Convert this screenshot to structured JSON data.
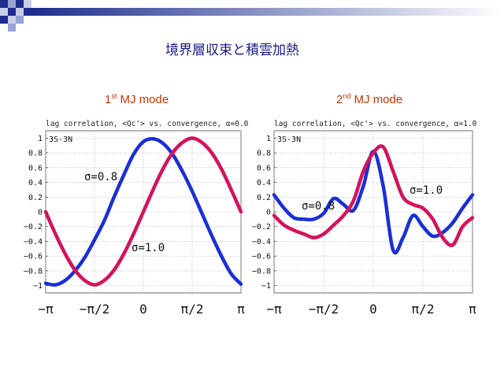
{
  "slide": {
    "title": "境界層収束と積雲加熱",
    "mode_labels": [
      {
        "prefix": "1",
        "sup": "st",
        "suffix": " MJ mode"
      },
      {
        "prefix": "2",
        "sup": "nd",
        "suffix": " MJ mode"
      }
    ]
  },
  "colors": {
    "blue_series": "#1a2fd6",
    "magenta_series": "#d4125c",
    "title_blue": "#1a1a8a",
    "mode_label": "#cc3300"
  },
  "chart_data": [
    {
      "type": "line",
      "title": "lag correlation, <Qc'> vs. convergence, α=0.0",
      "region_label": "3S-3N",
      "x_tick_labels": [
        "−π",
        "−π/2",
        "0",
        "π/2",
        "π"
      ],
      "x_ticks": [
        -3.1416,
        -1.5708,
        0,
        1.5708,
        3.1416
      ],
      "y_ticks": [
        -1,
        -0.8,
        -0.6,
        -0.4,
        -0.2,
        0,
        0.2,
        0.4,
        0.6,
        0.8,
        1
      ],
      "y_tick_labels": [
        "−1",
        "−0.8",
        "−0.6",
        "−0.4",
        "−0.2",
        "0",
        "0.2",
        "0.4",
        "0.6",
        "0.8",
        "1"
      ],
      "xlim": [
        -3.1416,
        3.1416
      ],
      "ylim": [
        -1.1,
        1.1
      ],
      "grid": true,
      "series": [
        {
          "label": "σ=0.8",
          "color": "#1a2fd6",
          "x": [
            -3.1416,
            -2.8274,
            -2.5133,
            -2.1991,
            -1.885,
            -1.5708,
            -1.2566,
            -0.9425,
            -0.6283,
            -0.3142,
            0,
            0.3142,
            0.6283,
            0.9425,
            1.2566,
            1.5708,
            1.885,
            2.1991,
            2.5133,
            2.8274,
            3.1416
          ],
          "y": [
            -0.97,
            -0.99,
            -0.93,
            -0.8,
            -0.62,
            -0.38,
            -0.12,
            0.2,
            0.5,
            0.78,
            0.95,
            0.99,
            0.93,
            0.78,
            0.55,
            0.28,
            -0.02,
            -0.32,
            -0.6,
            -0.84,
            -0.98
          ]
        },
        {
          "label": "σ=1.0",
          "color": "#d4125c",
          "x": [
            -3.1416,
            -2.8274,
            -2.5133,
            -2.1991,
            -1.885,
            -1.5708,
            -1.2566,
            -0.9425,
            -0.6283,
            -0.3142,
            0,
            0.3142,
            0.6283,
            0.9425,
            1.2566,
            1.5708,
            1.885,
            2.1991,
            2.5133,
            2.8274,
            3.1416
          ],
          "y": [
            0,
            -0.3,
            -0.57,
            -0.79,
            -0.93,
            -0.99,
            -0.93,
            -0.79,
            -0.57,
            -0.3,
            0,
            0.3,
            0.58,
            0.8,
            0.94,
            1.0,
            0.94,
            0.8,
            0.58,
            0.3,
            0
          ]
        }
      ]
    },
    {
      "type": "line",
      "title": "lag correlation, <Qc'> vs. convergence, α=1.0",
      "region_label": "3S-3N",
      "x_tick_labels": [
        "−π",
        "−π/2",
        "0",
        "π/2",
        "π"
      ],
      "x_ticks": [
        -3.1416,
        -1.5708,
        0,
        1.5708,
        3.1416
      ],
      "y_ticks": [
        -1,
        -0.8,
        -0.6,
        -0.4,
        -0.2,
        0,
        0.2,
        0.4,
        0.6,
        0.8,
        1
      ],
      "y_tick_labels": [
        "−1",
        "−0.8",
        "−0.6",
        "−0.4",
        "−0.2",
        "0",
        "0.2",
        "0.4",
        "0.6",
        "0.8",
        "1"
      ],
      "xlim": [
        -3.1416,
        3.1416
      ],
      "ylim": [
        -1.1,
        1.1
      ],
      "grid": true,
      "series": [
        {
          "label": "σ=0.8",
          "color": "#1a2fd6",
          "x": [
            -3.1416,
            -2.8274,
            -2.5133,
            -2.1991,
            -1.885,
            -1.5708,
            -1.2566,
            -0.9425,
            -0.6283,
            -0.3142,
            0,
            0.3142,
            0.6283,
            0.9425,
            1.2566,
            1.5708,
            1.885,
            2.1991,
            2.5133,
            2.8274,
            3.1416
          ],
          "y": [
            0.23,
            0.05,
            -0.08,
            -0.1,
            -0.1,
            -0.02,
            0.18,
            0.1,
            0.02,
            0.35,
            0.82,
            0.35,
            -0.52,
            -0.35,
            -0.05,
            -0.2,
            -0.33,
            -0.28,
            -0.15,
            0.05,
            0.23
          ]
        },
        {
          "label": "σ=1.0",
          "color": "#d4125c",
          "x": [
            -3.1416,
            -2.8274,
            -2.5133,
            -2.1991,
            -1.885,
            -1.5708,
            -1.2566,
            -0.9425,
            -0.6283,
            -0.3142,
            0,
            0.3142,
            0.6283,
            0.9425,
            1.2566,
            1.5708,
            1.885,
            2.1991,
            2.5133,
            2.8274,
            3.1416
          ],
          "y": [
            -0.05,
            -0.18,
            -0.25,
            -0.3,
            -0.35,
            -0.3,
            -0.18,
            -0.05,
            0.15,
            0.55,
            0.8,
            0.88,
            0.55,
            0.2,
            0.1,
            0.05,
            -0.1,
            -0.35,
            -0.45,
            -0.2,
            -0.08
          ]
        }
      ]
    }
  ]
}
